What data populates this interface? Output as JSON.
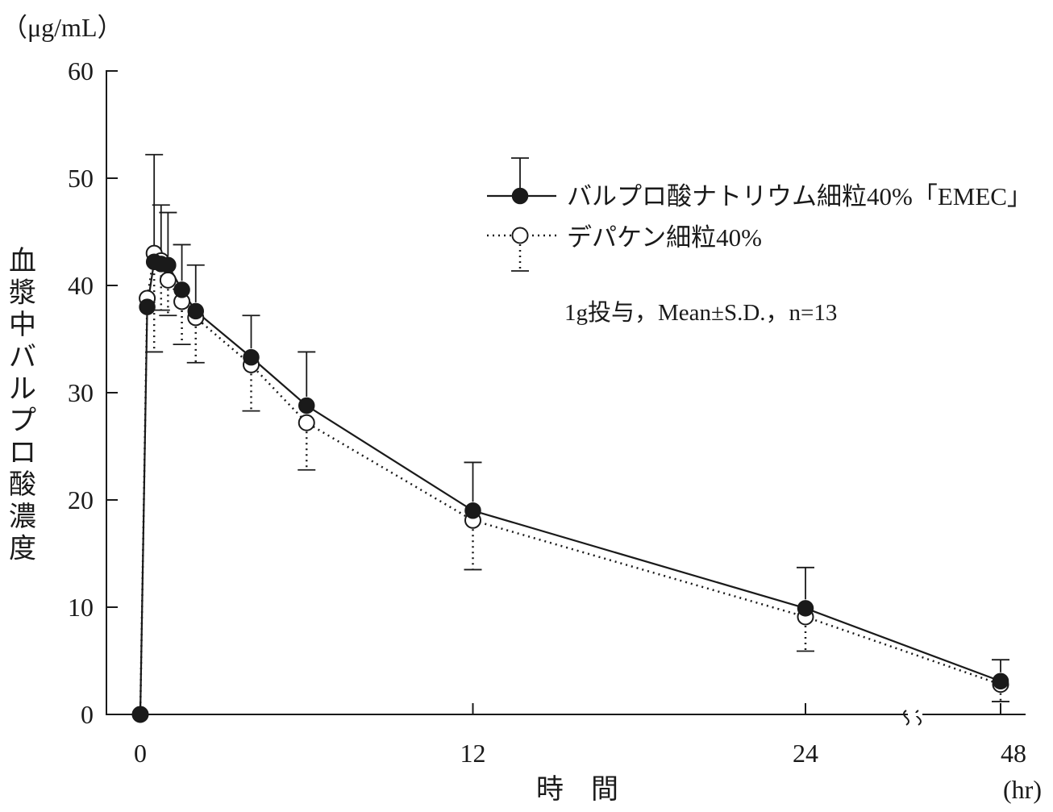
{
  "chart_data": {
    "type": "line",
    "unit_label": "（μg/mL）",
    "ylabel": "血漿中バルプロ酸濃度",
    "xlabel": "時　間",
    "x_unit_label": "(hr)",
    "ylim": [
      0,
      60
    ],
    "y_ticks": [
      "0",
      "10",
      "20",
      "30",
      "40",
      "50",
      "60"
    ],
    "x_ticks": [
      "0",
      "12",
      "24",
      "48"
    ],
    "x_tick_values": [
      0,
      12,
      24,
      48
    ],
    "x_axis_break": "between 24 and 48",
    "note": "1g投与，Mean±S.D.，n=13",
    "legend_position": "top-right",
    "series": [
      {
        "name": "バルプロ酸ナトリウム細粒40%「EMEC」",
        "marker": "filled-circle",
        "line": "solid",
        "color": "#1a1a1a",
        "x": [
          0,
          0.25,
          0.5,
          0.75,
          1,
          1.5,
          2,
          4,
          6,
          12,
          24,
          48
        ],
        "y": [
          0,
          38.0,
          42.2,
          42.0,
          41.9,
          39.6,
          37.6,
          33.3,
          28.8,
          19.0,
          9.9,
          3.1
        ],
        "sd": [
          0,
          0,
          10.0,
          5.5,
          4.9,
          4.2,
          4.3,
          3.9,
          5.0,
          4.5,
          3.8,
          2.0
        ]
      },
      {
        "name": "デパケン細粒40%",
        "marker": "open-circle",
        "line": "dotted",
        "color": "#1a1a1a",
        "x": [
          0,
          0.25,
          0.5,
          0.75,
          1,
          1.5,
          2,
          4,
          6,
          12,
          24,
          48
        ],
        "y": [
          0,
          38.8,
          43.0,
          42.3,
          40.5,
          38.5,
          37.0,
          32.6,
          27.2,
          18.1,
          9.1,
          2.8
        ],
        "sd": [
          0,
          0,
          9.2,
          4.6,
          3.3,
          4.0,
          4.2,
          4.3,
          4.4,
          4.6,
          3.2,
          1.6
        ]
      }
    ]
  }
}
